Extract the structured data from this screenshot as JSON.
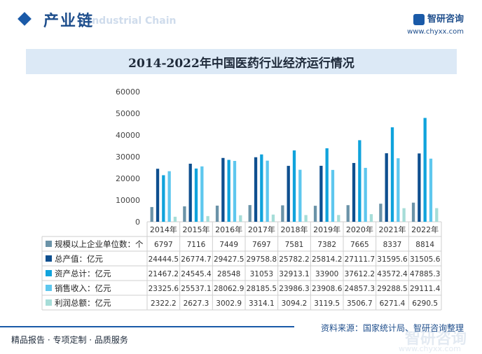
{
  "header": {
    "section_title": "产业链",
    "section_sub": "Industrial Chain",
    "brand_name": "智研咨询",
    "brand_url": "www.chyxx.com"
  },
  "footer": {
    "services": "精品报告 · 专项定制 · 品质服务",
    "source": "资料来源：国家统计局、智研咨询整理",
    "watermark": "智研咨询",
    "watermark_url": "www.chyxx.com"
  },
  "chart_data": {
    "type": "bar",
    "title": "2014-2022年中国医药行业经济运行情况",
    "categories": [
      "2014年",
      "2015年",
      "2016年",
      "2017年",
      "2018年",
      "2019年",
      "2020年",
      "2021年",
      "2022年"
    ],
    "ylim": [
      0,
      60000
    ],
    "yticks": [
      "0",
      "10000",
      "20000",
      "30000",
      "40000",
      "50000",
      "60000"
    ],
    "series": [
      {
        "name": "规模以上企业单位数：个",
        "color": "#6b93a8",
        "values": [
          6797,
          7116,
          7449,
          7697,
          7581,
          7382,
          7665,
          8337,
          8814
        ],
        "labels": [
          "6797",
          "7116",
          "7449",
          "7697",
          "7581",
          "7382",
          "7665",
          "8337",
          "8814"
        ]
      },
      {
        "name": "总产值：亿元",
        "color": "#0e4f8f",
        "values": [
          24444.5,
          26774.7,
          29427.5,
          29758.8,
          25782.2,
          25814.2,
          27111.7,
          31595.6,
          31505.6
        ],
        "labels": [
          "24444.5",
          "26774.7",
          "29427.5",
          "29758.8",
          "25782.2",
          "25814.2",
          "27111.7",
          "31595.6",
          "31505.6"
        ]
      },
      {
        "name": "资产总计：亿元",
        "color": "#10a3dc",
        "values": [
          21467.2,
          24545.4,
          28548,
          31053,
          32913.1,
          33900,
          37612.2,
          43572.4,
          47885.3
        ],
        "labels": [
          "21467.2",
          "24545.4",
          "28548",
          "31053",
          "32913.1",
          "33900",
          "37612.2",
          "43572.4",
          "47885.3"
        ]
      },
      {
        "name": "销售收入：亿元",
        "color": "#5ec7ee",
        "values": [
          23325.6,
          25537.1,
          28062.9,
          28185.5,
          23986.3,
          23908.6,
          24857.3,
          29288.5,
          29111.4
        ],
        "labels": [
          "23325.6",
          "25537.1",
          "28062.9",
          "28185.5",
          "23986.3",
          "23908.6",
          "24857.3",
          "29288.5",
          "29111.4"
        ]
      },
      {
        "name": "利润总额：亿元",
        "color": "#a6ddd8",
        "values": [
          2322.2,
          2627.3,
          3002.9,
          3314.1,
          3094.2,
          3119.5,
          3506.7,
          6271.4,
          6290.5
        ],
        "labels": [
          "2322.2",
          "2627.3",
          "3002.9",
          "3314.1",
          "3094.2",
          "3119.5",
          "3506.7",
          "6271.4",
          "6290.5"
        ]
      }
    ]
  }
}
